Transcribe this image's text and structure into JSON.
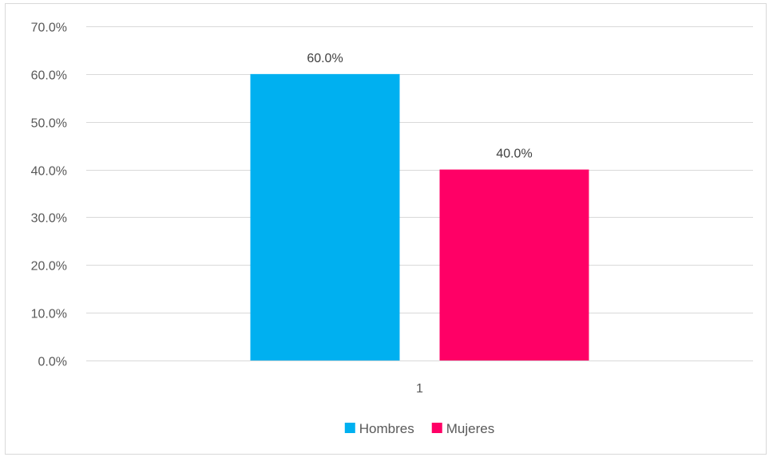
{
  "chart_data": {
    "type": "bar",
    "categories": [
      "1"
    ],
    "series": [
      {
        "name": "Hombres",
        "values": [
          0.6
        ],
        "color": "#00B0F0"
      },
      {
        "name": "Mujeres",
        "values": [
          0.4
        ],
        "color": "#FF0066"
      }
    ],
    "data_labels": [
      "60.0%",
      "40.0%"
    ],
    "ylim": [
      0,
      0.7
    ],
    "yticks": [
      0,
      0.1,
      0.2,
      0.3,
      0.4,
      0.5,
      0.6,
      0.7
    ],
    "ytick_labels": [
      "0.0%",
      "10.0%",
      "20.0%",
      "30.0%",
      "40.0%",
      "50.0%",
      "60.0%",
      "70.0%"
    ],
    "grid": true,
    "legend_position": "bottom",
    "title": "",
    "xlabel": "",
    "ylabel": ""
  }
}
